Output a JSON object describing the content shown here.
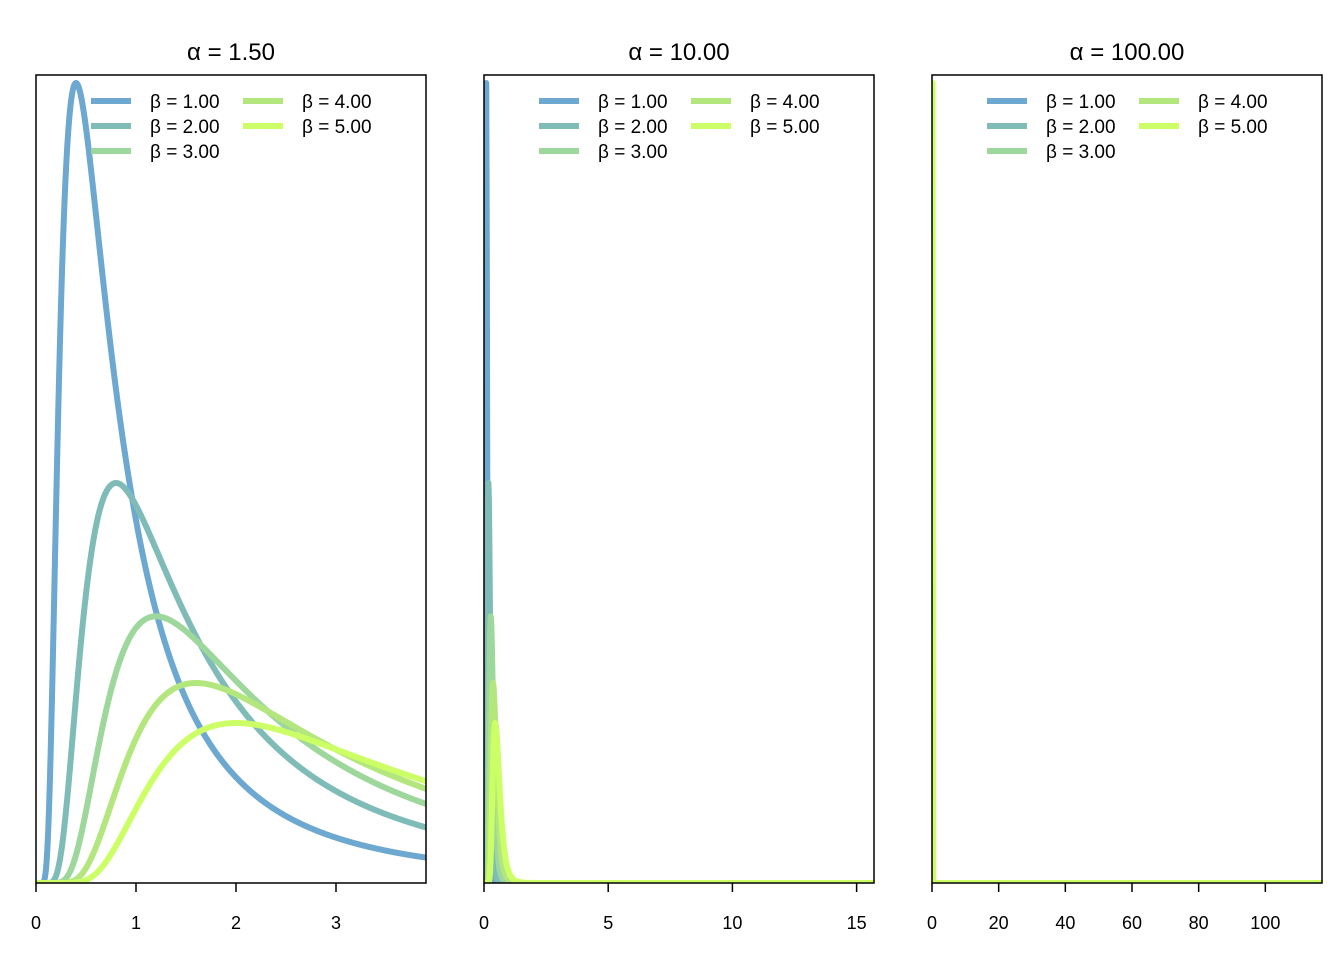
{
  "chart_data": [
    {
      "type": "line",
      "title": "α = 1.50",
      "alpha": 1.5,
      "xlim": [
        0,
        3.9
      ],
      "x_ticks": [
        0,
        1,
        2,
        3
      ],
      "x_tick_labels": [
        "0",
        "1",
        "2",
        "3"
      ],
      "y_axis_labeled": false,
      "legend_position": "top",
      "legend_columns": 2,
      "series": [
        {
          "name": "β = 1.00",
          "beta": 1.0,
          "color": "#6ca8d0"
        },
        {
          "name": "β = 2.00",
          "beta": 2.0,
          "color": "#7fbcb8"
        },
        {
          "name": "β = 3.00",
          "beta": 3.0,
          "color": "#9ed79c"
        },
        {
          "name": "β = 4.00",
          "beta": 4.0,
          "color": "#b4e67e"
        },
        {
          "name": "β = 5.00",
          "beta": 5.0,
          "color": "#ccff66"
        }
      ]
    },
    {
      "type": "line",
      "title": "α = 10.00",
      "alpha": 10.0,
      "xlim": [
        0,
        15.7
      ],
      "x_ticks": [
        0,
        5,
        10,
        15
      ],
      "x_tick_labels": [
        "0",
        "5",
        "10",
        "15"
      ],
      "y_axis_labeled": false,
      "legend_position": "top",
      "legend_columns": 2,
      "series": [
        {
          "name": "β = 1.00",
          "beta": 1.0,
          "color": "#6ca8d0"
        },
        {
          "name": "β = 2.00",
          "beta": 2.0,
          "color": "#7fbcb8"
        },
        {
          "name": "β = 3.00",
          "beta": 3.0,
          "color": "#9ed79c"
        },
        {
          "name": "β = 4.00",
          "beta": 4.0,
          "color": "#b4e67e"
        },
        {
          "name": "β = 5.00",
          "beta": 5.0,
          "color": "#ccff66"
        }
      ]
    },
    {
      "type": "line",
      "title": "α = 100.00",
      "alpha": 100.0,
      "xlim": [
        0,
        117
      ],
      "x_ticks": [
        0,
        20,
        40,
        60,
        80,
        100
      ],
      "x_tick_labels": [
        "0",
        "20",
        "40",
        "60",
        "80",
        "100"
      ],
      "y_axis_labeled": false,
      "legend_position": "top",
      "legend_columns": 2,
      "series": [
        {
          "name": "β = 1.00",
          "beta": 1.0,
          "color": "#6ca8d0"
        },
        {
          "name": "β = 2.00",
          "beta": 2.0,
          "color": "#7fbcb8"
        },
        {
          "name": "β = 3.00",
          "beta": 3.0,
          "color": "#9ed79c"
        },
        {
          "name": "β = 4.00",
          "beta": 4.0,
          "color": "#b4e67e"
        },
        {
          "name": "β = 5.00",
          "beta": 5.0,
          "color": "#ccff66"
        }
      ]
    }
  ]
}
